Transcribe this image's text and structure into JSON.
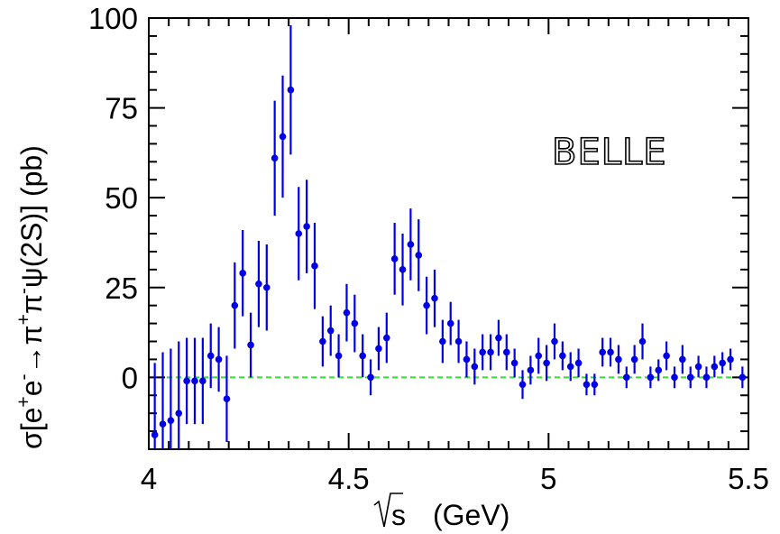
{
  "chart_data": {
    "type": "scatter",
    "annotation": "BELLE",
    "xlabel": {
      "root": "s",
      "unit": "(GeV)"
    },
    "ylabel": {
      "sigma": "σ[e",
      "e1": "e",
      "arrow": "→π",
      "pi": "π",
      "psi": "ψ(2S)] (pb)",
      "plus": "+",
      "minus": "-"
    },
    "xlim": [
      4.0,
      5.5
    ],
    "ylim": [
      -20,
      100
    ],
    "x_ticks": [
      "4",
      "4.5",
      "5",
      "5.5"
    ],
    "y_ticks": [
      "100",
      "75",
      "50",
      "25",
      "0"
    ],
    "x_tick_values": [
      4.0,
      4.5,
      5.0,
      5.5
    ],
    "y_tick_values": [
      100,
      75,
      50,
      25,
      0
    ],
    "zero_line": 0,
    "colors": {
      "points": "#0000e6",
      "zero_line": "#33dd33",
      "axes": "#000000"
    },
    "series": [
      {
        "points": [
          {
            "x": 4.015,
            "y": -16,
            "err": 20
          },
          {
            "x": 4.035,
            "y": -13,
            "err": 20
          },
          {
            "x": 4.055,
            "y": -12,
            "err": 20
          },
          {
            "x": 4.075,
            "y": -10,
            "err": 20
          },
          {
            "x": 4.095,
            "y": -1,
            "err": 12
          },
          {
            "x": 4.115,
            "y": -1,
            "err": 12
          },
          {
            "x": 4.135,
            "y": -1,
            "err": 12
          },
          {
            "x": 4.155,
            "y": 6,
            "err": 9
          },
          {
            "x": 4.175,
            "y": 5,
            "err": 9
          },
          {
            "x": 4.195,
            "y": -6,
            "err": 12
          },
          {
            "x": 4.215,
            "y": 20,
            "err": 12
          },
          {
            "x": 4.235,
            "y": 29,
            "err": 12
          },
          {
            "x": 4.255,
            "y": 9,
            "err": 9
          },
          {
            "x": 4.275,
            "y": 26,
            "err": 12
          },
          {
            "x": 4.295,
            "y": 25,
            "err": 12
          },
          {
            "x": 4.315,
            "y": 61,
            "err": 16
          },
          {
            "x": 4.335,
            "y": 67,
            "err": 17
          },
          {
            "x": 4.355,
            "y": 80,
            "err": 18
          },
          {
            "x": 4.375,
            "y": 40,
            "err": 13
          },
          {
            "x": 4.395,
            "y": 42,
            "err": 13
          },
          {
            "x": 4.415,
            "y": 31,
            "err": 12
          },
          {
            "x": 4.435,
            "y": 10,
            "err": 7
          },
          {
            "x": 4.455,
            "y": 13,
            "err": 7
          },
          {
            "x": 4.475,
            "y": 6,
            "err": 6
          },
          {
            "x": 4.495,
            "y": 18,
            "err": 8
          },
          {
            "x": 4.515,
            "y": 15,
            "err": 8
          },
          {
            "x": 4.535,
            "y": 6,
            "err": 6
          },
          {
            "x": 4.555,
            "y": 0,
            "err": 5
          },
          {
            "x": 4.575,
            "y": 8,
            "err": 6
          },
          {
            "x": 4.595,
            "y": 11,
            "err": 7
          },
          {
            "x": 4.615,
            "y": 33,
            "err": 10
          },
          {
            "x": 4.635,
            "y": 30,
            "err": 10
          },
          {
            "x": 4.655,
            "y": 37,
            "err": 10
          },
          {
            "x": 4.675,
            "y": 34,
            "err": 10
          },
          {
            "x": 4.695,
            "y": 20,
            "err": 8
          },
          {
            "x": 4.715,
            "y": 22,
            "err": 8
          },
          {
            "x": 4.735,
            "y": 10,
            "err": 6
          },
          {
            "x": 4.755,
            "y": 15,
            "err": 6
          },
          {
            "x": 4.775,
            "y": 10,
            "err": 6
          },
          {
            "x": 4.795,
            "y": 5,
            "err": 5
          },
          {
            "x": 4.815,
            "y": 3,
            "err": 5
          },
          {
            "x": 4.835,
            "y": 7,
            "err": 5
          },
          {
            "x": 4.855,
            "y": 7,
            "err": 5
          },
          {
            "x": 4.875,
            "y": 11,
            "err": 5
          },
          {
            "x": 4.895,
            "y": 7,
            "err": 5
          },
          {
            "x": 4.915,
            "y": 4,
            "err": 4
          },
          {
            "x": 4.935,
            "y": -2,
            "err": 4
          },
          {
            "x": 4.955,
            "y": 2,
            "err": 4
          },
          {
            "x": 4.975,
            "y": 6,
            "err": 5
          },
          {
            "x": 4.995,
            "y": 4,
            "err": 5
          },
          {
            "x": 5.015,
            "y": 10,
            "err": 5
          },
          {
            "x": 5.035,
            "y": 6,
            "err": 4
          },
          {
            "x": 5.055,
            "y": 3,
            "err": 4
          },
          {
            "x": 5.075,
            "y": 4,
            "err": 4
          },
          {
            "x": 5.095,
            "y": -2,
            "err": 3
          },
          {
            "x": 5.115,
            "y": -2,
            "err": 3
          },
          {
            "x": 5.135,
            "y": 7,
            "err": 4
          },
          {
            "x": 5.155,
            "y": 7,
            "err": 4
          },
          {
            "x": 5.175,
            "y": 5,
            "err": 4
          },
          {
            "x": 5.195,
            "y": 0,
            "err": 3
          },
          {
            "x": 5.215,
            "y": 5,
            "err": 4
          },
          {
            "x": 5.235,
            "y": 10,
            "err": 5
          },
          {
            "x": 5.255,
            "y": 0,
            "err": 3
          },
          {
            "x": 5.275,
            "y": 2,
            "err": 3
          },
          {
            "x": 5.295,
            "y": 6,
            "err": 4
          },
          {
            "x": 5.315,
            "y": 0,
            "err": 3
          },
          {
            "x": 5.335,
            "y": 5,
            "err": 4
          },
          {
            "x": 5.355,
            "y": 0,
            "err": 3
          },
          {
            "x": 5.375,
            "y": 3,
            "err": 3
          },
          {
            "x": 5.395,
            "y": 0,
            "err": 3
          },
          {
            "x": 5.415,
            "y": 3,
            "err": 3
          },
          {
            "x": 5.435,
            "y": 4,
            "err": 3
          },
          {
            "x": 5.455,
            "y": 5,
            "err": 3
          },
          {
            "x": 5.485,
            "y": 0,
            "err": 3
          }
        ]
      }
    ]
  }
}
